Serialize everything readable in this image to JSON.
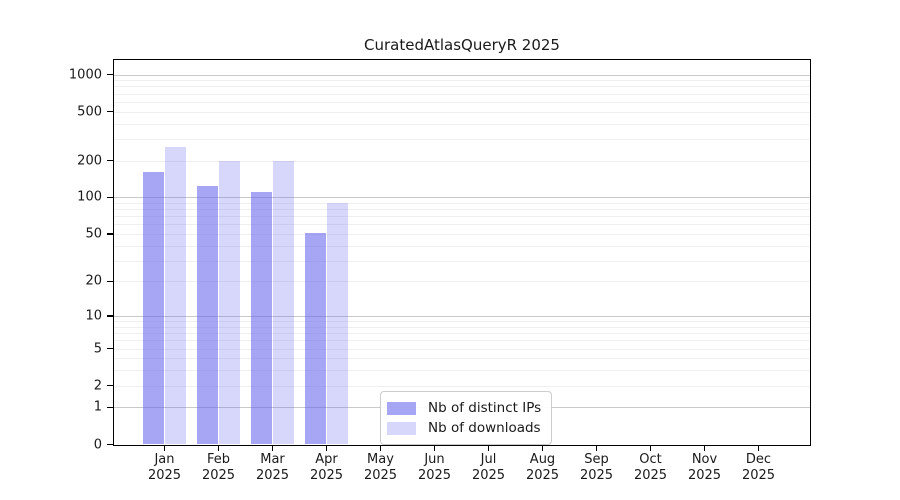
{
  "chart_data": {
    "type": "bar",
    "title": "CuratedAtlasQueryR 2025",
    "year_label": "2025",
    "months": [
      "Jan",
      "Feb",
      "Mar",
      "Apr",
      "May",
      "Jun",
      "Jul",
      "Aug",
      "Sep",
      "Oct",
      "Nov",
      "Dec"
    ],
    "series": [
      {
        "name": "Nb of distinct IPs",
        "color_hex": "#6666ee",
        "alpha": 0.58,
        "solid_hex": "#a8a8f0",
        "values": [
          160,
          125,
          110,
          51,
          0,
          0,
          0,
          0,
          0,
          0,
          0,
          0
        ]
      },
      {
        "name": "Nb of downloads",
        "color_hex": "#6666ee",
        "alpha": 0.26,
        "solid_hex": "#d8d8f6",
        "values": [
          260,
          200,
          200,
          90,
          0,
          0,
          0,
          0,
          0,
          0,
          0,
          0
        ]
      }
    ],
    "yscale": "log1p",
    "yticks": [
      0,
      1,
      2,
      5,
      10,
      20,
      50,
      100,
      200,
      500,
      1000
    ],
    "ylim": [
      0,
      1300
    ],
    "xlabel": "",
    "ylabel": "",
    "grid": true,
    "grid_major_values": [
      1,
      10,
      100,
      1000
    ],
    "legend_position": "lower-center",
    "frame_color": "#000000",
    "background_color": "#ffffff"
  }
}
